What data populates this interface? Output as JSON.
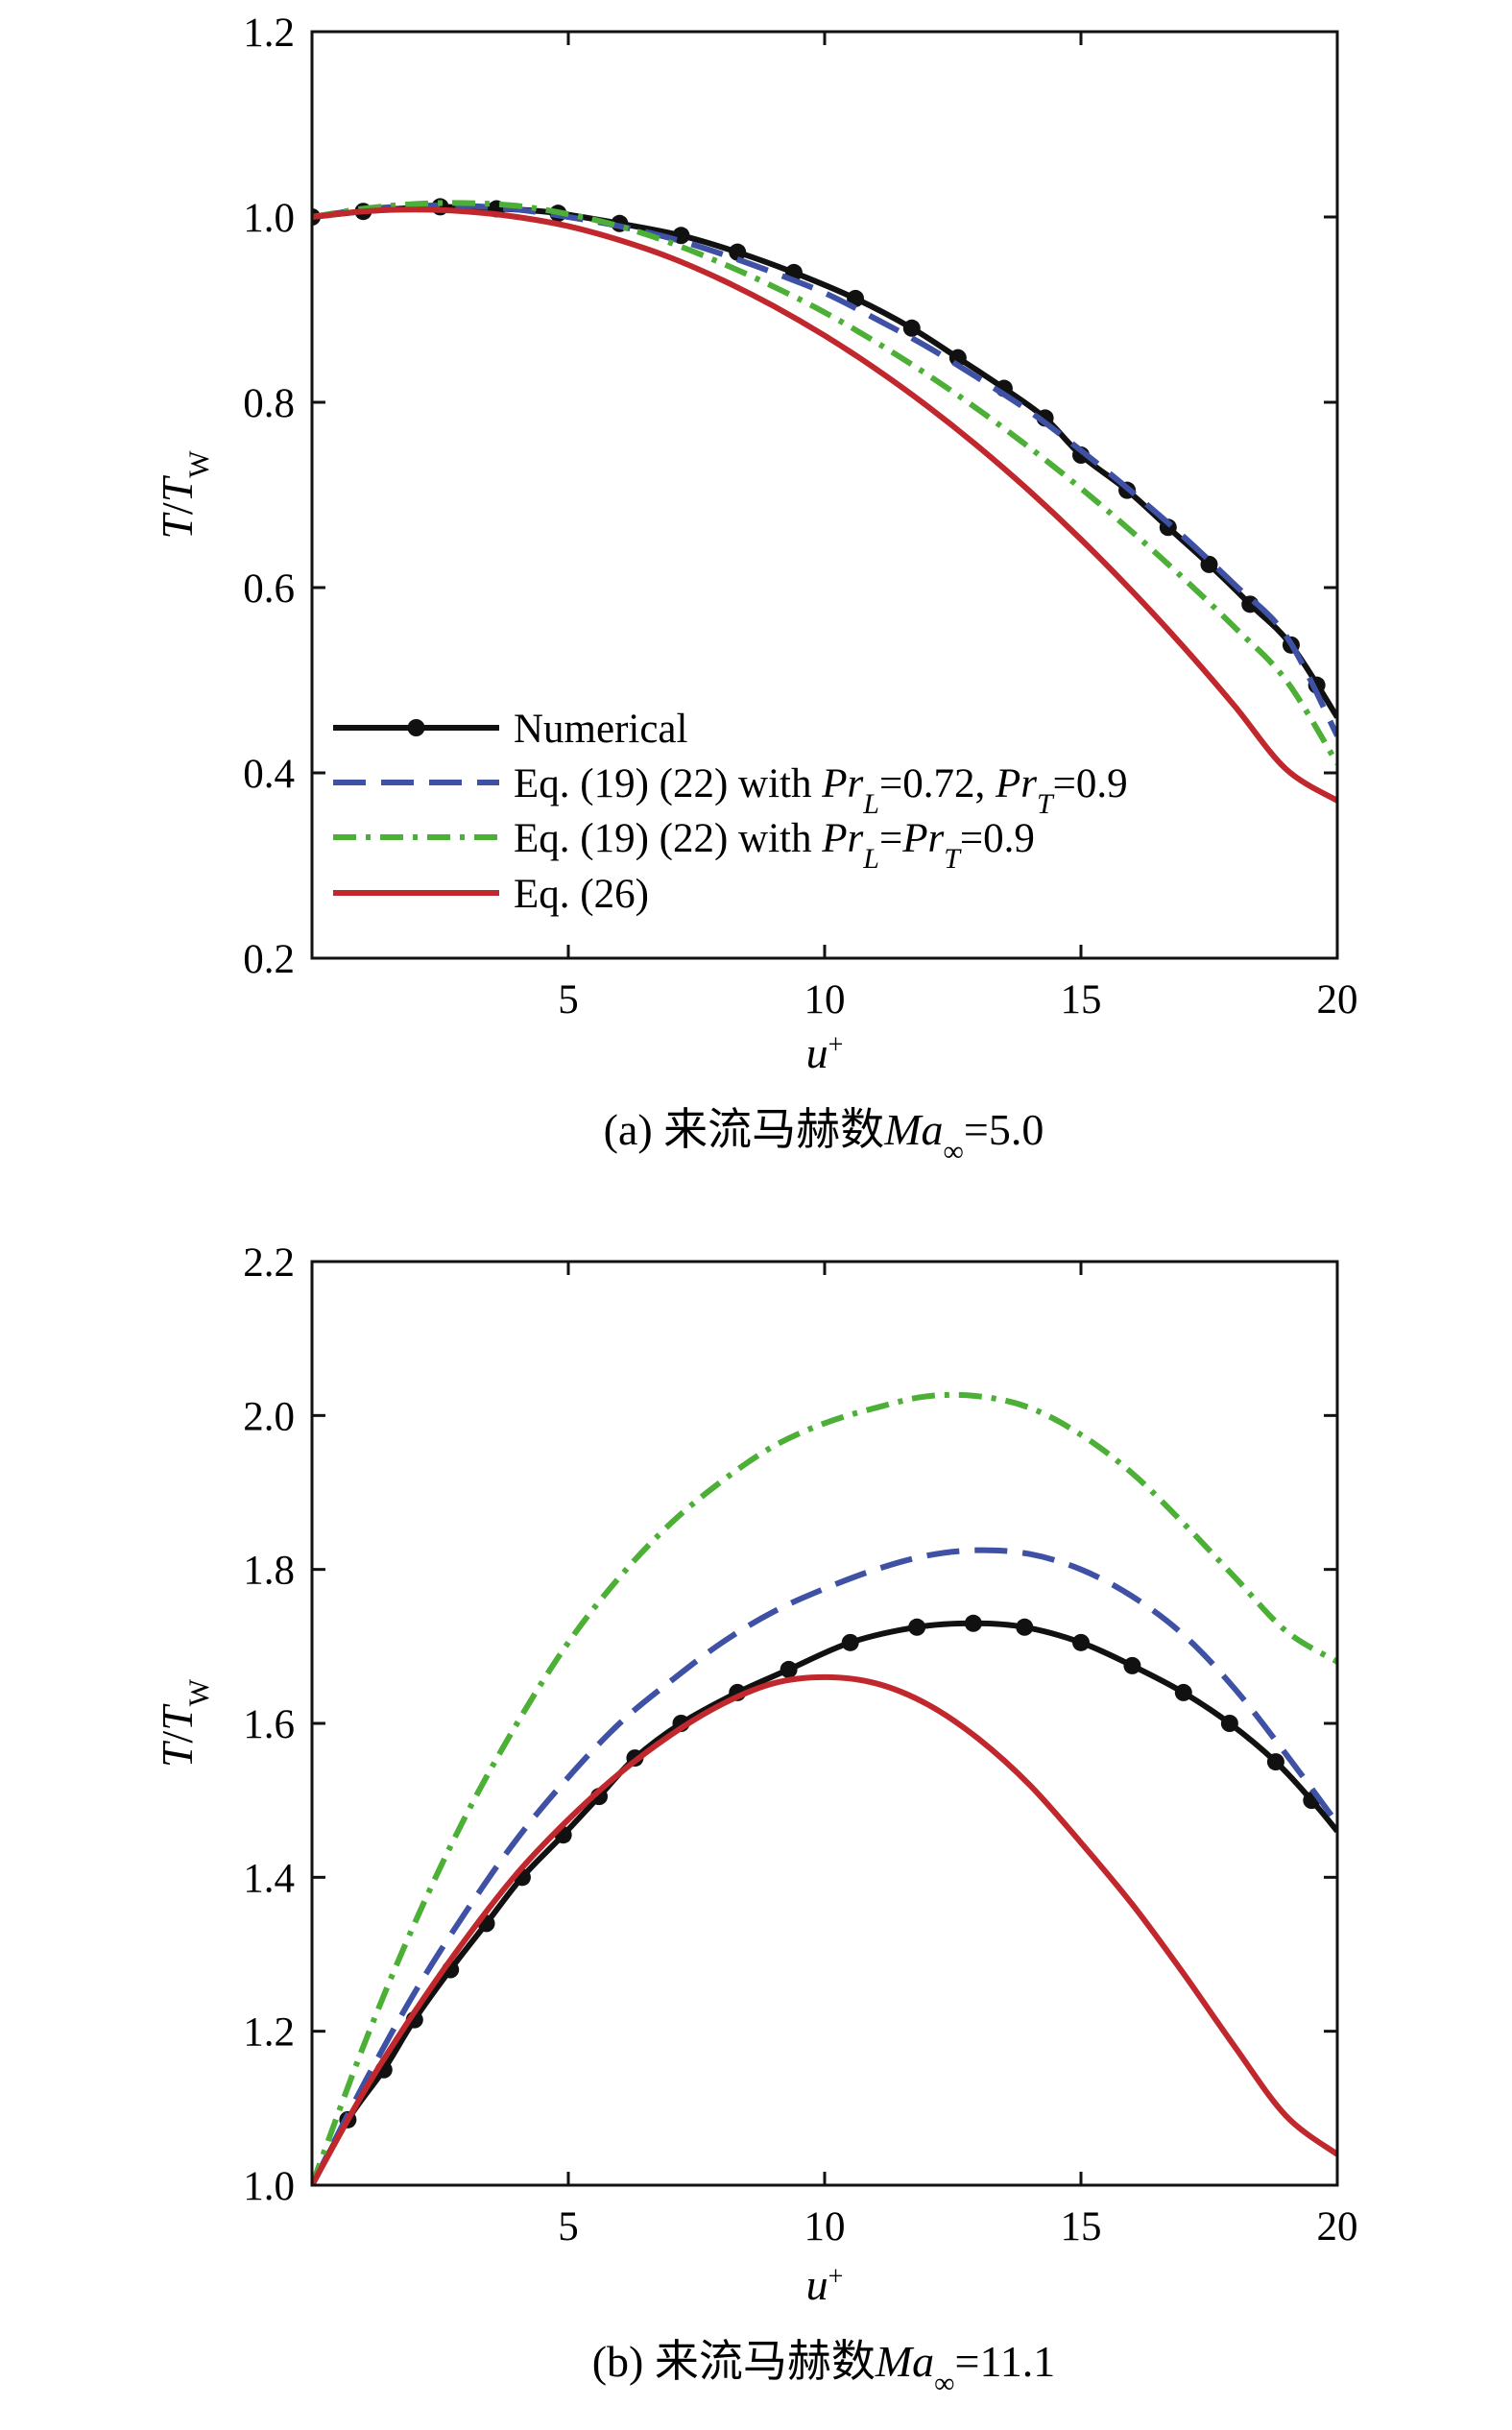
{
  "chart_data": [
    {
      "type": "line",
      "caption": "(a) 来流马赫数Ma∞=5.0",
      "xlabel": "u+",
      "ylabel": "T/Tw",
      "xlim": [
        0,
        20
      ],
      "ylim": [
        0.2,
        1.2
      ],
      "xticks": [
        "5",
        "10",
        "15",
        "20"
      ],
      "yticks": [
        "0.2",
        "0.4",
        "0.6",
        "0.8",
        "1.0",
        "1.2"
      ],
      "legend_position": "lower-left",
      "legend": [
        "Numerical",
        "Eq. (19) (22) with PrL=0.72, PrT=0.9",
        "Eq. (19) (22) with PrL=PrT=0.9",
        "Eq. (26)"
      ],
      "series": [
        {
          "name": "Numerical",
          "style": "solid-markers",
          "color": "#111111",
          "x": [
            0,
            1,
            2,
            2.5,
            3,
            4,
            4.8,
            6,
            7.2,
            8.3,
            9.4,
            10.6,
            11.7,
            12.6,
            13.5,
            14.3,
            15,
            15.9,
            16.7,
            17.5,
            18.3,
            19.1,
            20
          ],
          "y": [
            1.0,
            1.006,
            1.01,
            1.011,
            1.01,
            1.008,
            1.004,
            0.993,
            0.98,
            0.962,
            0.94,
            0.912,
            0.88,
            0.848,
            0.815,
            0.783,
            0.743,
            0.705,
            0.665,
            0.625,
            0.582,
            0.538,
            0.46
          ],
          "markers_x": [
            0,
            1,
            2.5,
            3.6,
            4.8,
            6,
            7.2,
            8.3,
            9.4,
            10.6,
            11.7,
            12.6,
            13.5,
            14.3,
            15,
            15.9,
            16.7,
            17.5,
            18.3,
            19.1,
            19.6
          ]
        },
        {
          "name": "Eq. (19) (22) with PrL=0.72, PrT=0.9",
          "style": "dashed",
          "color": "#3f51a5",
          "x": [
            0,
            1,
            2,
            3,
            4,
            5,
            6,
            7,
            8,
            9,
            10,
            11,
            12,
            13,
            14,
            15,
            16,
            17,
            18,
            19,
            20
          ],
          "y": [
            1.0,
            1.008,
            1.012,
            1.012,
            1.008,
            1.0,
            0.99,
            0.977,
            0.96,
            0.94,
            0.918,
            0.89,
            0.86,
            0.826,
            0.79,
            0.748,
            0.703,
            0.655,
            0.603,
            0.548,
            0.44
          ]
        },
        {
          "name": "Eq. (19) (22) with PrL=PrT=0.9",
          "style": "dash-dot",
          "color": "#4caf36",
          "x": [
            0,
            1,
            2,
            3,
            4,
            5,
            6,
            7,
            8,
            9,
            10,
            11,
            12,
            13,
            14,
            15,
            16,
            17,
            18,
            19,
            20
          ],
          "y": [
            1.0,
            1.009,
            1.014,
            1.015,
            1.012,
            1.003,
            0.99,
            0.972,
            0.95,
            0.925,
            0.897,
            0.865,
            0.83,
            0.792,
            0.751,
            0.707,
            0.66,
            0.61,
            0.557,
            0.5,
            0.41
          ]
        },
        {
          "name": "Eq. (26)",
          "style": "solid",
          "color": "#c0282d",
          "x": [
            0,
            1,
            2,
            3,
            4,
            5,
            6,
            7,
            8,
            9,
            10,
            11,
            12,
            13,
            14,
            15,
            16,
            17,
            18,
            19,
            20
          ],
          "y": [
            1.0,
            1.006,
            1.008,
            1.006,
            1.0,
            0.99,
            0.975,
            0.956,
            0.932,
            0.904,
            0.872,
            0.836,
            0.796,
            0.752,
            0.704,
            0.652,
            0.596,
            0.536,
            0.472,
            0.404,
            0.37
          ]
        }
      ]
    },
    {
      "type": "line",
      "caption": "(b) 来流马赫数Ma∞=11.1",
      "xlabel": "u+",
      "ylabel": "T/Tw",
      "xlim": [
        0,
        20
      ],
      "ylim": [
        1.0,
        2.2
      ],
      "xticks": [
        "5",
        "10",
        "15",
        "20"
      ],
      "yticks": [
        "1.0",
        "1.2",
        "1.4",
        "1.6",
        "1.8",
        "2.0",
        "2.2"
      ],
      "series": [
        {
          "name": "Numerical",
          "style": "solid-markers",
          "color": "#111111",
          "x": [
            0,
            0.7,
            1.4,
            2.0,
            2.7,
            3.4,
            4.1,
            4.9,
            5.6,
            6.3,
            7.2,
            8.3,
            9.3,
            10.5,
            11.8,
            12.9,
            13.9,
            15.0,
            16.0,
            17.0,
            17.9,
            18.8,
            19.5,
            20
          ],
          "y": [
            1.0,
            1.085,
            1.15,
            1.215,
            1.28,
            1.34,
            1.4,
            1.455,
            1.505,
            1.555,
            1.6,
            1.64,
            1.67,
            1.705,
            1.725,
            1.73,
            1.725,
            1.705,
            1.675,
            1.64,
            1.6,
            1.55,
            1.5,
            1.46
          ],
          "markers_x": [
            0.7,
            1.4,
            2.0,
            2.7,
            3.4,
            4.1,
            4.9,
            5.6,
            6.3,
            7.2,
            8.3,
            9.3,
            10.5,
            11.8,
            12.9,
            13.9,
            15.0,
            16.0,
            17.0,
            17.9,
            18.8,
            19.5
          ]
        },
        {
          "name": "Eq. (19) (22) with PrL=0.72, PrT=0.9",
          "style": "dashed",
          "color": "#3f51a5",
          "x": [
            0,
            1,
            2,
            3,
            4,
            5,
            6,
            7,
            8,
            9,
            10,
            11,
            12,
            13,
            14,
            15,
            16,
            17,
            18,
            19,
            20
          ],
          "y": [
            1.0,
            1.13,
            1.25,
            1.355,
            1.45,
            1.53,
            1.6,
            1.655,
            1.705,
            1.745,
            1.775,
            1.8,
            1.818,
            1.825,
            1.82,
            1.8,
            1.765,
            1.715,
            1.645,
            1.56,
            1.47
          ]
        },
        {
          "name": "Eq. (19) (22) with PrL=PrT=0.9",
          "style": "dash-dot",
          "color": "#4caf36",
          "x": [
            0,
            1,
            2,
            3,
            4,
            5,
            6,
            7,
            8,
            9,
            10,
            11,
            12,
            13,
            14,
            15,
            16,
            17,
            18,
            19,
            20
          ],
          "y": [
            1.0,
            1.18,
            1.34,
            1.48,
            1.6,
            1.705,
            1.79,
            1.86,
            1.915,
            1.96,
            1.99,
            2.01,
            2.025,
            2.025,
            2.01,
            1.975,
            1.925,
            1.86,
            1.79,
            1.72,
            1.68
          ]
        },
        {
          "name": "Eq. (26)",
          "style": "solid",
          "color": "#c0282d",
          "x": [
            0,
            1,
            2,
            3,
            4,
            5,
            6,
            7,
            8,
            9,
            10,
            11,
            12,
            13,
            14,
            15,
            16,
            17,
            18,
            19,
            20
          ],
          "y": [
            1.0,
            1.12,
            1.225,
            1.32,
            1.405,
            1.475,
            1.535,
            1.585,
            1.625,
            1.652,
            1.66,
            1.652,
            1.625,
            1.58,
            1.52,
            1.445,
            1.365,
            1.275,
            1.18,
            1.09,
            1.04
          ]
        }
      ]
    }
  ]
}
